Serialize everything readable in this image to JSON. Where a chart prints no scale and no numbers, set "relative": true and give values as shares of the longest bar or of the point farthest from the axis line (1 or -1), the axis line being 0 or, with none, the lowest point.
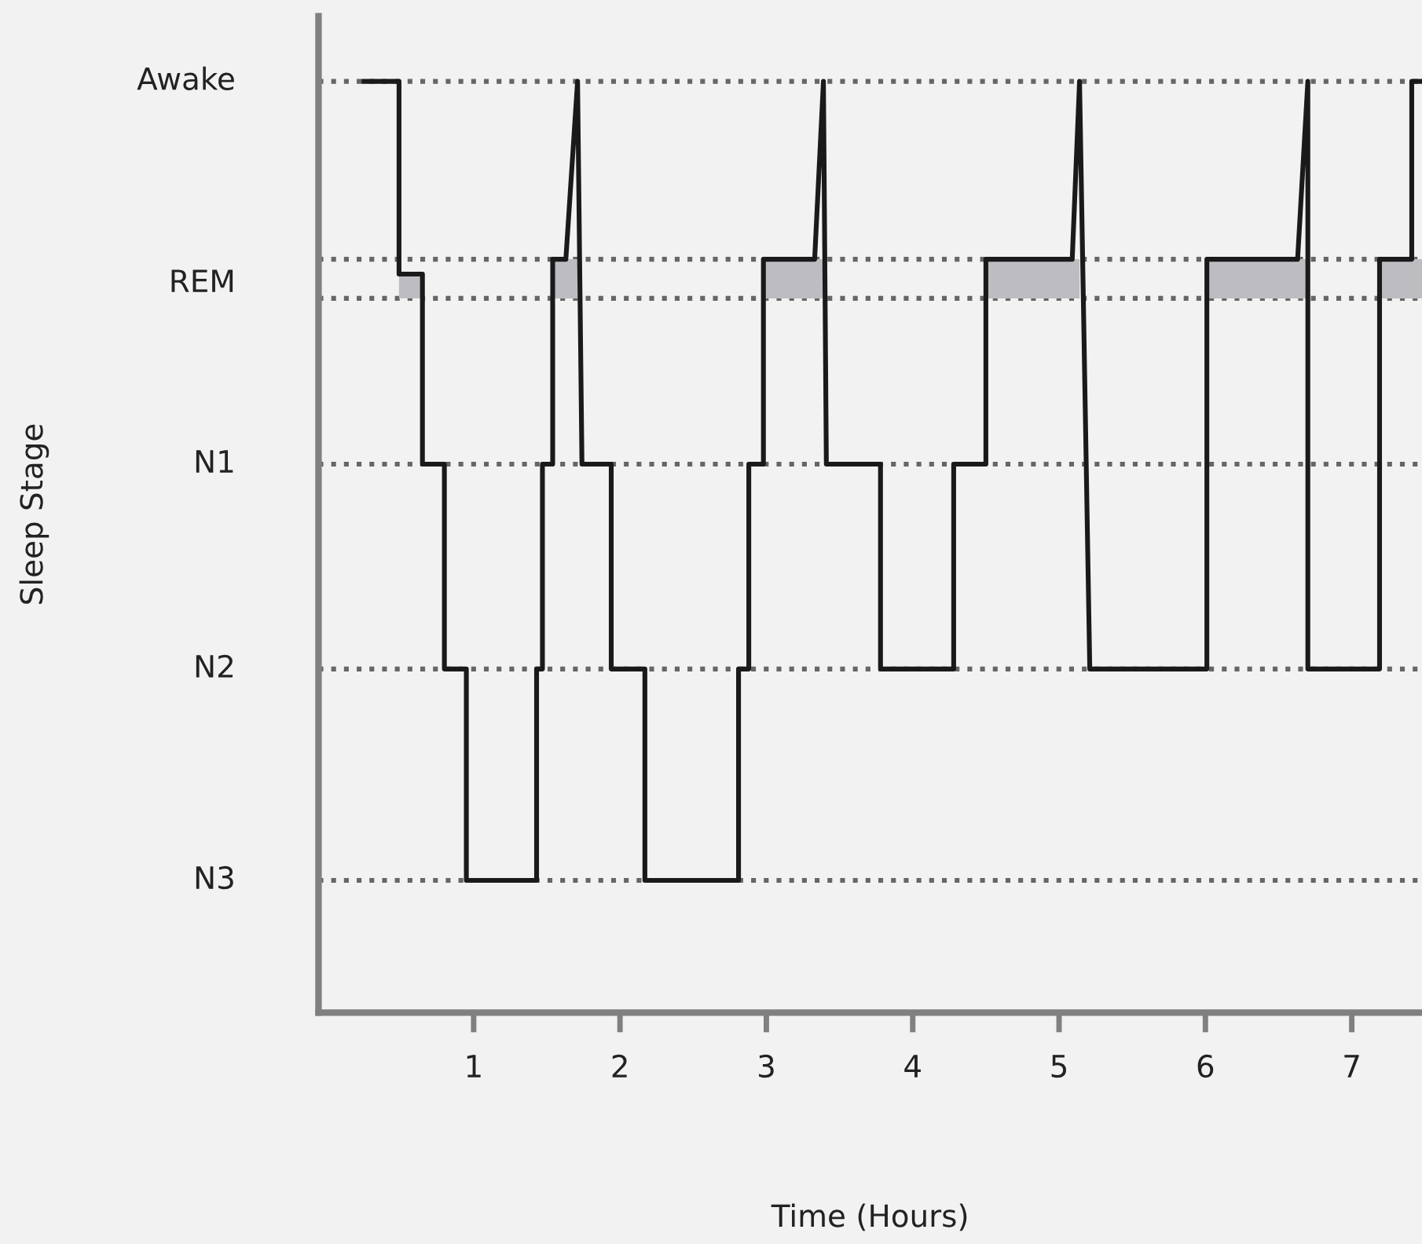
{
  "chart_data": {
    "type": "line",
    "xlabel": "Time (Hours)",
    "annotations": [
      "Sleep Stage"
    ],
    "relative": true,
    "xlim": [
      -0.06,
      7.48
    ],
    "xticks": [
      1,
      2,
      3,
      4,
      5,
      6,
      7
    ],
    "grid": false,
    "legend": false,
    "marker": "none",
    "line_style": "solid",
    "ref_lines": [
      {
        "axis": "y",
        "value": 0.142,
        "label": "N3",
        "color": "#666666",
        "line_style": "dotted"
      },
      {
        "axis": "y",
        "value": 0.369,
        "label": "N2",
        "color": "#666666",
        "line_style": "dotted"
      },
      {
        "axis": "y",
        "value": 0.589,
        "label": "N1",
        "color": "#666666",
        "line_style": "dotted"
      },
      {
        "axis": "y",
        "value": 0.767,
        "label": "REM",
        "color": "#666666",
        "line_style": "dotted"
      },
      {
        "axis": "y",
        "value": 0.809,
        "label": null,
        "color": "#666666",
        "line_style": "dotted"
      },
      {
        "axis": "y",
        "value": 1,
        "label": "Awake",
        "color": "#666666",
        "line_style": "dotted"
      }
    ],
    "series": [
      {
        "color": "#1a1a1a",
        "x": [
          0.25,
          0.49,
          0.49,
          0.65,
          0.65,
          0.8,
          0.8,
          0.95,
          0.95,
          1.43,
          1.43,
          1.47,
          1.47,
          1.54,
          1.54,
          1.63,
          1.71,
          1.74,
          1.94,
          1.94,
          2.17,
          2.17,
          2.81,
          2.81,
          2.88,
          2.88,
          2.98,
          2.98,
          3.33,
          3.39,
          3.41,
          3.78,
          3.78,
          4.28,
          4.28,
          4.5,
          4.5,
          5.09,
          5.14,
          5.21,
          6.01,
          6.01,
          6.63,
          6.7,
          6.7,
          7.19,
          7.19,
          7.41,
          7.41,
          7.48
        ],
        "values": [
          1,
          1,
          0.793,
          0.793,
          0.589,
          0.589,
          0.369,
          0.369,
          0.142,
          0.142,
          0.369,
          0.369,
          0.589,
          0.589,
          0.809,
          0.809,
          1,
          0.589,
          0.589,
          0.369,
          0.369,
          0.142,
          0.142,
          0.369,
          0.369,
          0.589,
          0.589,
          0.809,
          0.809,
          1,
          0.589,
          0.589,
          0.369,
          0.369,
          0.589,
          0.589,
          0.809,
          0.809,
          1,
          0.369,
          0.369,
          0.809,
          0.809,
          1,
          0.369,
          0.369,
          0.809,
          0.809,
          1,
          1
        ],
        "lower": [
          null,
          null,
          0.767,
          0.767,
          null,
          null,
          null,
          null,
          null,
          null,
          null,
          null,
          null,
          null,
          0.767,
          0.767,
          0.767,
          null,
          null,
          null,
          null,
          null,
          null,
          null,
          null,
          null,
          null,
          0.767,
          0.767,
          0.767,
          null,
          null,
          null,
          null,
          null,
          null,
          0.767,
          0.767,
          0.767,
          null,
          null,
          0.767,
          0.767,
          0.767,
          null,
          null,
          0.767,
          0.767,
          0.767,
          0.767
        ],
        "upper": [
          null,
          null,
          0.793,
          0.793,
          null,
          null,
          null,
          null,
          null,
          null,
          null,
          null,
          null,
          null,
          0.809,
          0.809,
          0.809,
          null,
          null,
          null,
          null,
          null,
          null,
          null,
          null,
          null,
          null,
          0.809,
          0.809,
          0.809,
          null,
          null,
          null,
          null,
          null,
          null,
          0.809,
          0.809,
          0.809,
          null,
          null,
          0.809,
          0.809,
          0.809,
          null,
          null,
          0.809,
          0.809,
          0.809,
          0.809
        ]
      }
    ]
  }
}
